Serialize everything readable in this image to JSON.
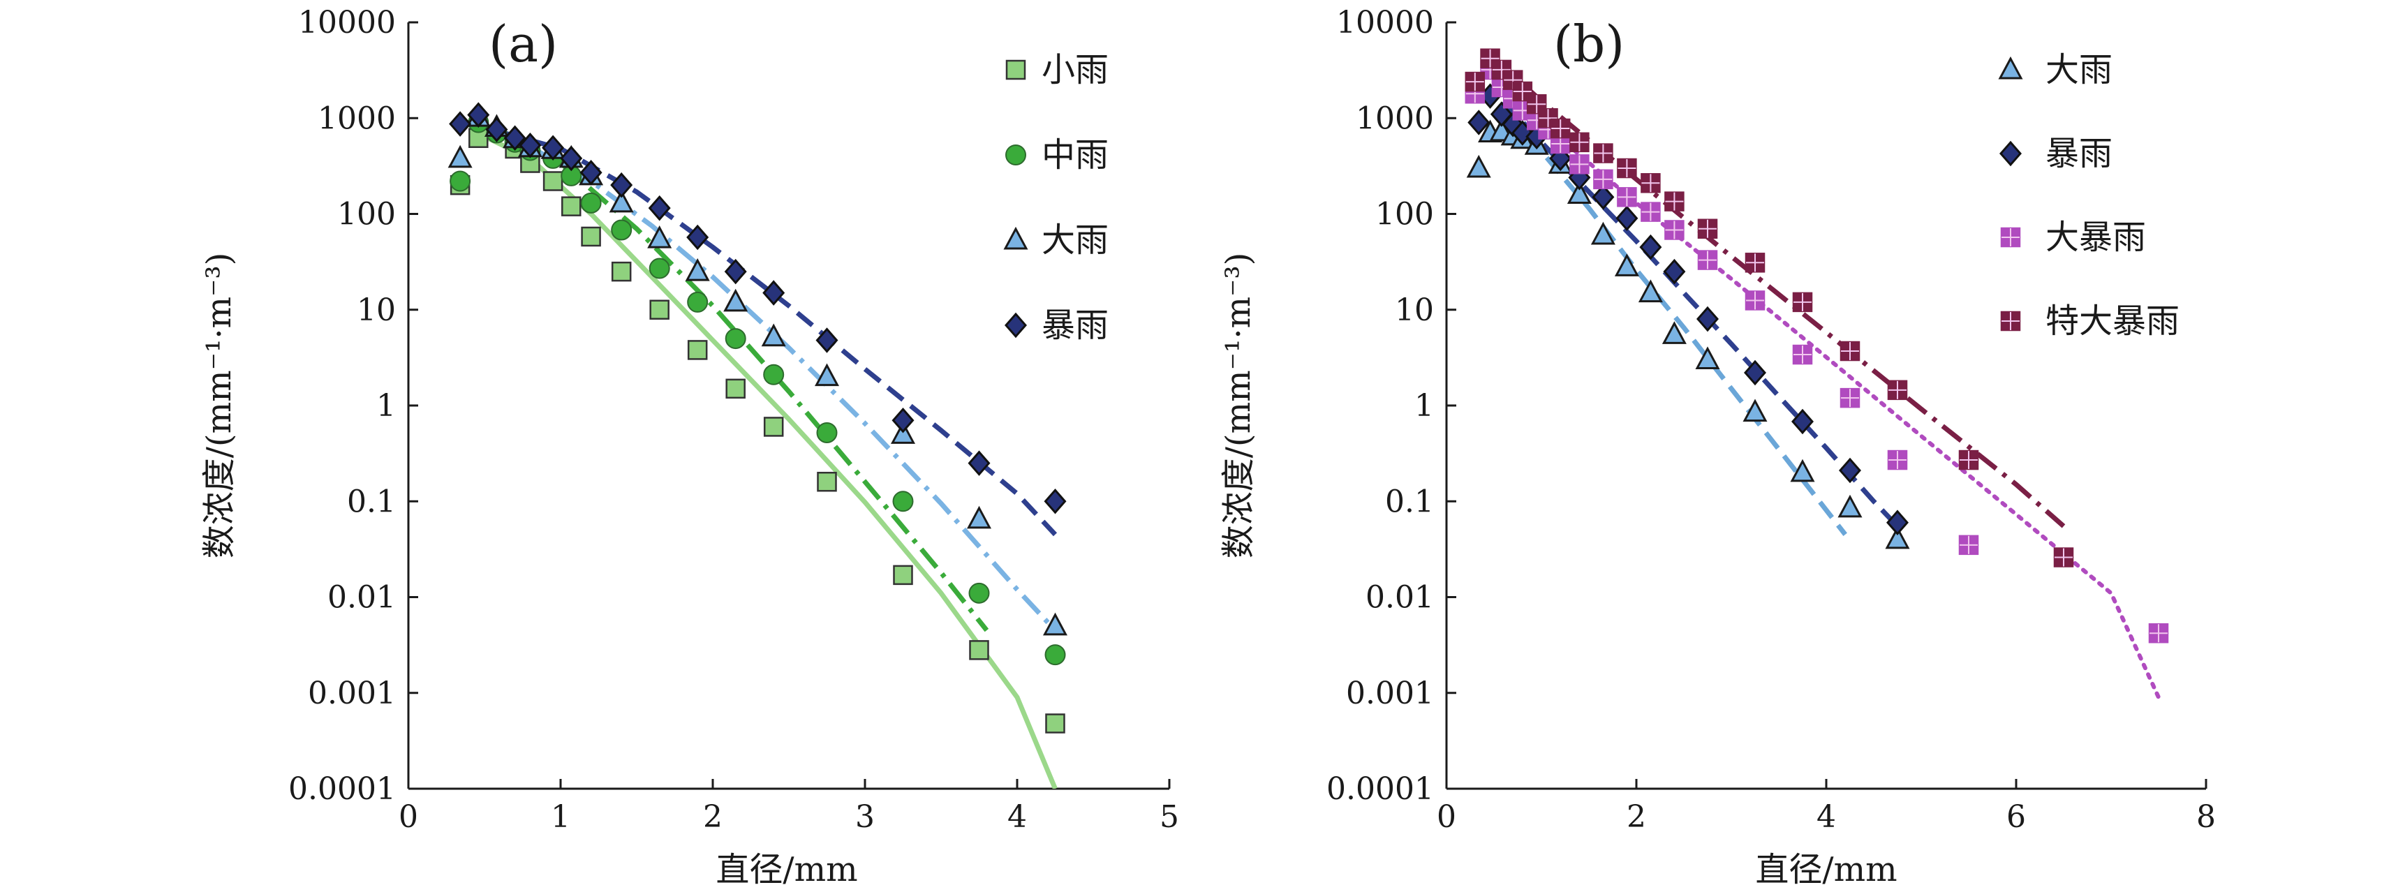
{
  "chart_data": [
    {
      "type": "scatter",
      "panel_label": "(a)",
      "xlabel": "直径/mm",
      "ylabel": "数浓度/(mm⁻¹·m⁻³)",
      "xlim": [
        0,
        5
      ],
      "ylim": [
        0.0001,
        10000
      ],
      "yscale": "log",
      "x_ticks": [
        "0",
        "1",
        "2",
        "3",
        "4",
        "5"
      ],
      "y_ticks": [
        "0.0001",
        "0.001",
        "0.01",
        "0.1",
        "1",
        "10",
        "100",
        "1000",
        "10000"
      ],
      "grid": false,
      "legend_position": "top-right",
      "series": [
        {
          "name": "小雨",
          "marker": "square",
          "color": "#8fd17e",
          "fit_style": "solid",
          "fit_color": "#9bd88a",
          "points": [
            [
              0.34,
              200
            ],
            [
              0.46,
              620
            ],
            [
              0.7,
              480
            ],
            [
              0.8,
              340
            ],
            [
              0.95,
              220
            ],
            [
              1.07,
              120
            ],
            [
              1.2,
              58
            ],
            [
              1.4,
              25
            ],
            [
              1.65,
              10
            ],
            [
              1.9,
              3.8
            ],
            [
              2.15,
              1.5
            ],
            [
              2.4,
              0.6
            ],
            [
              2.75,
              0.16
            ],
            [
              3.25,
              0.017
            ],
            [
              3.75,
              0.0028
            ],
            [
              4.25,
              0.00048
            ]
          ],
          "fit": [
            [
              0.45,
              700
            ],
            [
              0.8,
              380
            ],
            [
              1.2,
              100
            ],
            [
              1.6,
              22
            ],
            [
              2.0,
              4.8
            ],
            [
              2.5,
              0.72
            ],
            [
              3.0,
              0.098
            ],
            [
              3.5,
              0.011
            ],
            [
              4.0,
              0.0009
            ],
            [
              4.25,
              0.0001
            ]
          ]
        },
        {
          "name": "中雨",
          "marker": "circle",
          "color": "#3aab3a",
          "fit_style": "dashdot",
          "fit_color": "#3aab3a",
          "points": [
            [
              0.34,
              220
            ],
            [
              0.46,
              900
            ],
            [
              0.58,
              700
            ],
            [
              0.7,
              560
            ],
            [
              0.8,
              460
            ],
            [
              0.95,
              380
            ],
            [
              1.07,
              250
            ],
            [
              1.2,
              130
            ],
            [
              1.4,
              68
            ],
            [
              1.65,
              27
            ],
            [
              1.9,
              12
            ],
            [
              2.15,
              5
            ],
            [
              2.4,
              2.1
            ],
            [
              2.75,
              0.52
            ],
            [
              3.25,
              0.1
            ],
            [
              3.75,
              0.011
            ],
            [
              4.25,
              0.0025
            ]
          ],
          "fit": [
            [
              0.7,
              600
            ],
            [
              1.0,
              340
            ],
            [
              1.5,
              70
            ],
            [
              2.0,
              11
            ],
            [
              2.5,
              1.4
            ],
            [
              3.0,
              0.16
            ],
            [
              3.5,
              0.018
            ],
            [
              3.8,
              0.0045
            ]
          ]
        },
        {
          "name": "大雨",
          "marker": "triangle",
          "color": "#7ab3e3",
          "fit_style": "dashdot",
          "fit_color": "#7ab3e3",
          "points": [
            [
              0.34,
              380
            ],
            [
              0.46,
              1020
            ],
            [
              0.58,
              800
            ],
            [
              0.7,
              610
            ],
            [
              0.8,
              490
            ],
            [
              0.95,
              470
            ],
            [
              1.07,
              380
            ],
            [
              1.2,
              250
            ],
            [
              1.4,
              130
            ],
            [
              1.65,
              55
            ],
            [
              1.9,
              25
            ],
            [
              2.15,
              12
            ],
            [
              2.4,
              5.2
            ],
            [
              2.75,
              2
            ],
            [
              3.25,
              0.5
            ],
            [
              3.75,
              0.065
            ],
            [
              4.25,
              0.005
            ]
          ],
          "fit": [
            [
              0.8,
              500
            ],
            [
              1.2,
              220
            ],
            [
              1.6,
              75
            ],
            [
              2.0,
              22
            ],
            [
              2.5,
              4
            ],
            [
              3.0,
              0.65
            ],
            [
              3.5,
              0.095
            ],
            [
              4.0,
              0.012
            ],
            [
              4.25,
              0.0045
            ]
          ]
        },
        {
          "name": "暴雨",
          "marker": "diamond",
          "color": "#27337a",
          "fit_style": "dashed",
          "fit_color": "#2e3f8e",
          "points": [
            [
              0.34,
              870
            ],
            [
              0.46,
              1080
            ],
            [
              0.58,
              760
            ],
            [
              0.7,
              620
            ],
            [
              0.8,
              520
            ],
            [
              0.95,
              490
            ],
            [
              1.07,
              380
            ],
            [
              1.2,
              270
            ],
            [
              1.4,
              200
            ],
            [
              1.65,
              115
            ],
            [
              1.9,
              57
            ],
            [
              2.15,
              25
            ],
            [
              2.4,
              15
            ],
            [
              2.75,
              4.8
            ],
            [
              3.25,
              0.7
            ],
            [
              3.75,
              0.25
            ],
            [
              4.25,
              0.1
            ]
          ],
          "fit": [
            [
              0.6,
              720
            ],
            [
              1.0,
              480
            ],
            [
              1.5,
              170
            ],
            [
              2.0,
              45
            ],
            [
              2.5,
              11
            ],
            [
              3.0,
              2.4
            ],
            [
              3.5,
              0.55
            ],
            [
              4.0,
              0.12
            ],
            [
              4.25,
              0.045
            ]
          ]
        }
      ]
    },
    {
      "type": "scatter",
      "panel_label": "(b)",
      "xlabel": "直径/mm",
      "ylabel": "数浓度/(mm⁻¹·m⁻³)",
      "xlim": [
        0,
        8
      ],
      "ylim": [
        0.0001,
        10000
      ],
      "yscale": "log",
      "x_ticks": [
        "0",
        "2",
        "4",
        "6",
        "8"
      ],
      "y_ticks": [
        "0.0001",
        "0.001",
        "0.01",
        "0.1",
        "1",
        "10",
        "100",
        "1000",
        "10000"
      ],
      "grid": false,
      "legend_position": "top-right",
      "series": [
        {
          "name": "大雨",
          "marker": "triangle",
          "color": "#7ab3e3",
          "fit_style": "dashed",
          "fit_color": "#6aa6d8",
          "points": [
            [
              0.34,
              300
            ],
            [
              0.46,
              700
            ],
            [
              0.58,
              720
            ],
            [
              0.7,
              650
            ],
            [
              0.8,
              600
            ],
            [
              0.95,
              520
            ],
            [
              1.2,
              330
            ],
            [
              1.4,
              160
            ],
            [
              1.65,
              60
            ],
            [
              1.9,
              28
            ],
            [
              2.15,
              15
            ],
            [
              2.4,
              5.5
            ],
            [
              2.75,
              3
            ],
            [
              3.25,
              0.85
            ],
            [
              3.75,
              0.2
            ],
            [
              4.25,
              0.085
            ],
            [
              4.75,
              0.04
            ]
          ],
          "fit": [
            [
              0.6,
              1000
            ],
            [
              1.0,
              450
            ],
            [
              1.5,
              115
            ],
            [
              2.0,
              26
            ],
            [
              2.5,
              6.5
            ],
            [
              3.0,
              1.5
            ],
            [
              3.5,
              0.35
            ],
            [
              4.2,
              0.045
            ]
          ]
        },
        {
          "name": "暴雨",
          "marker": "diamond",
          "color": "#27337a",
          "fit_style": "dashed",
          "fit_color": "#2e3f8e",
          "points": [
            [
              0.34,
              900
            ],
            [
              0.46,
              1700
            ],
            [
              0.58,
              1100
            ],
            [
              0.7,
              860
            ],
            [
              0.8,
              700
            ],
            [
              0.95,
              640
            ],
            [
              1.2,
              380
            ],
            [
              1.4,
              240
            ],
            [
              1.65,
              150
            ],
            [
              1.9,
              90
            ],
            [
              2.15,
              45
            ],
            [
              2.4,
              25
            ],
            [
              2.75,
              8
            ],
            [
              3.25,
              2.2
            ],
            [
              3.75,
              0.68
            ],
            [
              4.25,
              0.21
            ],
            [
              4.75,
              0.06
            ]
          ],
          "fit": [
            [
              0.6,
              1500
            ],
            [
              1.0,
              560
            ],
            [
              1.5,
              170
            ],
            [
              2.0,
              52
            ],
            [
              2.5,
              15
            ],
            [
              3.0,
              4.4
            ],
            [
              3.5,
              1.25
            ],
            [
              4.0,
              0.36
            ],
            [
              4.5,
              0.1
            ],
            [
              4.75,
              0.055
            ]
          ]
        },
        {
          "name": "大暴雨",
          "marker": "square-cross",
          "color": "#b04bbf",
          "fit_style": "dotted",
          "fit_color": "#b04bbf",
          "points": [
            [
              0.3,
              1800
            ],
            [
              0.46,
              3200
            ],
            [
              0.58,
              2100
            ],
            [
              0.7,
              1600
            ],
            [
              0.8,
              1200
            ],
            [
              0.95,
              950
            ],
            [
              1.07,
              760
            ],
            [
              1.2,
              540
            ],
            [
              1.4,
              330
            ],
            [
              1.65,
              230
            ],
            [
              1.9,
              150
            ],
            [
              2.15,
              105
            ],
            [
              2.4,
              68
            ],
            [
              2.75,
              33
            ],
            [
              3.25,
              12.5
            ],
            [
              3.75,
              3.4
            ],
            [
              4.25,
              1.2
            ],
            [
              4.75,
              0.27
            ],
            [
              5.5,
              0.035
            ],
            [
              7.5,
              0.0042
            ]
          ],
          "fit": [
            [
              0.4,
              3800
            ],
            [
              1.0,
              900
            ],
            [
              2.0,
              130
            ],
            [
              3.0,
              21
            ],
            [
              4.0,
              3.2
            ],
            [
              5.0,
              0.48
            ],
            [
              6.0,
              0.073
            ],
            [
              7.0,
              0.011
            ],
            [
              7.5,
              0.0009
            ]
          ]
        },
        {
          "name": "特大暴雨",
          "marker": "square-cross",
          "color": "#7a1f45",
          "fit_style": "dashdot",
          "fit_color": "#7a1f45",
          "points": [
            [
              0.3,
              2400
            ],
            [
              0.46,
              4200
            ],
            [
              0.58,
              3200
            ],
            [
              0.7,
              2500
            ],
            [
              0.8,
              1900
            ],
            [
              0.95,
              1400
            ],
            [
              1.07,
              1000
            ],
            [
              1.2,
              780
            ],
            [
              1.4,
              560
            ],
            [
              1.65,
              430
            ],
            [
              1.9,
              300
            ],
            [
              2.15,
              210
            ],
            [
              2.4,
              135
            ],
            [
              2.75,
              70
            ],
            [
              3.25,
              31
            ],
            [
              3.75,
              12
            ],
            [
              4.25,
              3.7
            ],
            [
              4.75,
              1.45
            ],
            [
              5.5,
              0.27
            ],
            [
              6.5,
              0.026
            ]
          ],
          "fit": [
            [
              0.5,
              4300
            ],
            [
              1.0,
              1500
            ],
            [
              2.0,
              230
            ],
            [
              3.0,
              36
            ],
            [
              4.0,
              5.8
            ],
            [
              5.0,
              0.92
            ],
            [
              6.0,
              0.15
            ],
            [
              6.5,
              0.055
            ]
          ]
        }
      ]
    }
  ]
}
